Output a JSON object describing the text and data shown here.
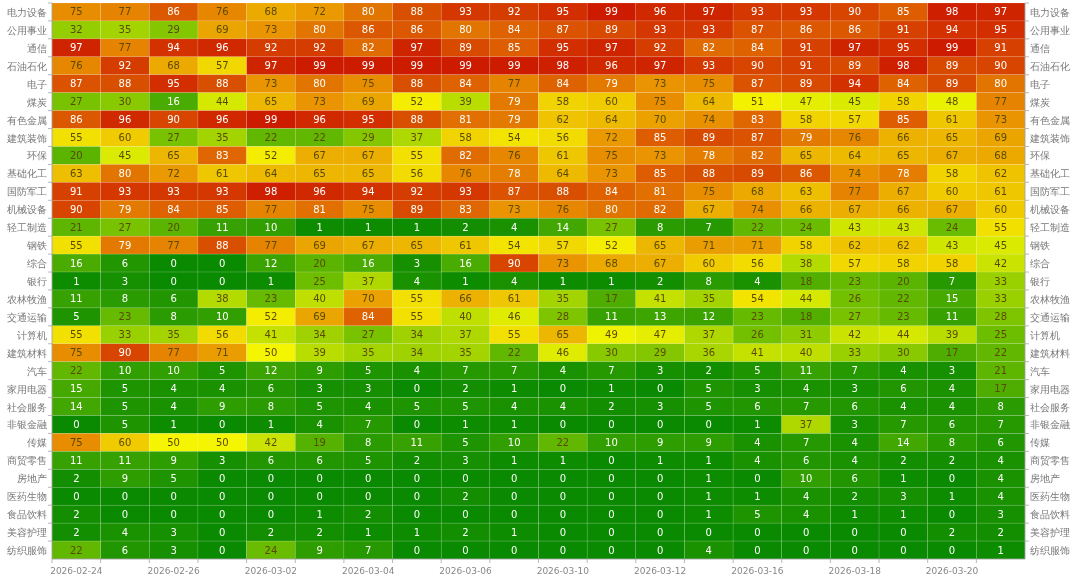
{
  "chart_data": {
    "type": "heatmap",
    "categories": [
      "2026-02-24",
      null,
      "2026-02-26",
      null,
      "2026-03-02",
      null,
      "2026-03-04",
      null,
      "2026-03-06",
      null,
      "2026-03-10",
      null,
      "2026-03-12",
      null,
      "2026-03-16",
      null,
      "2026-03-18",
      null,
      "2026-03-20",
      null
    ],
    "y_categories": [
      "电力设备",
      "公用事业",
      "通信",
      "石油石化",
      "电子",
      "煤炭",
      "有色金属",
      "建筑装饰",
      "环保",
      "基础化工",
      "国防军工",
      "机械设备",
      "轻工制造",
      "钢铁",
      "综合",
      "银行",
      "农林牧渔",
      "交通运输",
      "计算机",
      "建筑材料",
      "汽车",
      "家用电器",
      "社会服务",
      "非银金融",
      "传媒",
      "商贸零售",
      "房地产",
      "医药生物",
      "食品饮料",
      "美容护理",
      "纺织服饰"
    ],
    "y2_categories": [
      "电力设备",
      "公用事业",
      "通信",
      "石油石化",
      "电子",
      "煤炭",
      "有色金属",
      "建筑装饰",
      "环保",
      "基础化工",
      "国防军工",
      "机械设备",
      "轻工制造",
      "钢铁",
      "综合",
      "银行",
      "农林牧渔",
      "交通运输",
      "计算机",
      "建筑材料",
      "汽车",
      "家用电器",
      "社会服务",
      "非银金融",
      "传媒",
      "商贸零售",
      "房地产",
      "医药生物",
      "食品饮料",
      "美容护理",
      "纺织服饰"
    ],
    "cells": [
      [
        75,
        77,
        86,
        76,
        68,
        72,
        80,
        88,
        93,
        92,
        95,
        99,
        96,
        97,
        93,
        93,
        90,
        85,
        98,
        97
      ],
      [
        32,
        35,
        29,
        69,
        73,
        80,
        86,
        86,
        80,
        84,
        87,
        89,
        93,
        93,
        87,
        86,
        86,
        91,
        94,
        95
      ],
      [
        97,
        77,
        94,
        96,
        92,
        92,
        82,
        97,
        89,
        85,
        95,
        97,
        92,
        82,
        84,
        91,
        97,
        95,
        99,
        91
      ],
      [
        76,
        92,
        68,
        57,
        97,
        99,
        99,
        99,
        99,
        99,
        98,
        96,
        97,
        93,
        90,
        91,
        89,
        98,
        89,
        90
      ],
      [
        87,
        88,
        95,
        88,
        73,
        80,
        75,
        88,
        84,
        77,
        84,
        79,
        73,
        75,
        87,
        89,
        94,
        84,
        89,
        80
      ],
      [
        27,
        30,
        16,
        44,
        65,
        73,
        69,
        52,
        39,
        79,
        58,
        60,
        75,
        64,
        51,
        47,
        45,
        58,
        48,
        77
      ],
      [
        86,
        96,
        90,
        96,
        99,
        96,
        95,
        88,
        81,
        79,
        62,
        64,
        70,
        74,
        83,
        58,
        57,
        85,
        61,
        73
      ],
      [
        55,
        60,
        27,
        35,
        22,
        22,
        29,
        37,
        58,
        54,
        56,
        72,
        85,
        89,
        87,
        79,
        76,
        66,
        65,
        69
      ],
      [
        20,
        45,
        65,
        83,
        52,
        67,
        67,
        55,
        82,
        76,
        61,
        75,
        73,
        78,
        82,
        65,
        64,
        65,
        67,
        68
      ],
      [
        63,
        80,
        72,
        61,
        64,
        65,
        65,
        56,
        76,
        78,
        64,
        73,
        85,
        88,
        89,
        86,
        74,
        78,
        58,
        62
      ],
      [
        91,
        93,
        93,
        93,
        98,
        96,
        94,
        92,
        93,
        87,
        88,
        84,
        81,
        75,
        68,
        63,
        77,
        67,
        60,
        61
      ],
      [
        90,
        79,
        84,
        85,
        77,
        81,
        75,
        89,
        83,
        73,
        76,
        80,
        82,
        67,
        74,
        66,
        67,
        66,
        67,
        60
      ],
      [
        21,
        27,
        20,
        11,
        10,
        1,
        1,
        1,
        2,
        4,
        14,
        27,
        8,
        7,
        22,
        24,
        43,
        43,
        24,
        55
      ],
      [
        55,
        79,
        77,
        88,
        77,
        69,
        67,
        65,
        61,
        54,
        57,
        52,
        65,
        71,
        71,
        58,
        62,
        62,
        43,
        45
      ],
      [
        16,
        6,
        0,
        0,
        12,
        20,
        16,
        3,
        16,
        90,
        73,
        68,
        67,
        60,
        56,
        38,
        57,
        58,
        58,
        42
      ],
      [
        1,
        3,
        0,
        0,
        1,
        25,
        37,
        4,
        1,
        4,
        1,
        1,
        2,
        8,
        4,
        18,
        23,
        20,
        7,
        33
      ],
      [
        11,
        8,
        6,
        38,
        23,
        40,
        70,
        55,
        66,
        61,
        35,
        17,
        41,
        35,
        54,
        44,
        26,
        22,
        15,
        33
      ],
      [
        5,
        23,
        8,
        10,
        52,
        69,
        84,
        55,
        40,
        46,
        28,
        11,
        13,
        12,
        23,
        18,
        27,
        23,
        11,
        28
      ],
      [
        55,
        33,
        35,
        56,
        41,
        34,
        27,
        34,
        37,
        55,
        65,
        49,
        47,
        37,
        26,
        31,
        42,
        44,
        39,
        25
      ],
      [
        75,
        90,
        77,
        71,
        50,
        39,
        35,
        34,
        35,
        22,
        46,
        30,
        29,
        36,
        41,
        40,
        33,
        30,
        17,
        22
      ],
      [
        22,
        10,
        10,
        5,
        12,
        9,
        5,
        4,
        7,
        7,
        4,
        7,
        3,
        2,
        5,
        11,
        7,
        4,
        3,
        21
      ],
      [
        15,
        5,
        4,
        4,
        6,
        3,
        3,
        0,
        2,
        1,
        0,
        1,
        0,
        5,
        3,
        4,
        3,
        6,
        4,
        17
      ],
      [
        14,
        5,
        4,
        9,
        8,
        5,
        4,
        5,
        5,
        4,
        4,
        2,
        3,
        5,
        6,
        7,
        6,
        4,
        4,
        8
      ],
      [
        0,
        5,
        1,
        0,
        1,
        4,
        7,
        0,
        1,
        1,
        0,
        0,
        0,
        0,
        1,
        37,
        3,
        7,
        6,
        7
      ],
      [
        75,
        60,
        50,
        50,
        42,
        19,
        8,
        11,
        5,
        10,
        22,
        10,
        9,
        9,
        4,
        7,
        4,
        14,
        8,
        6
      ],
      [
        11,
        11,
        9,
        3,
        6,
        6,
        5,
        2,
        3,
        1,
        1,
        0,
        1,
        1,
        4,
        6,
        4,
        2,
        2,
        4
      ],
      [
        2,
        9,
        5,
        0,
        0,
        0,
        0,
        0,
        0,
        0,
        0,
        0,
        0,
        1,
        0,
        10,
        6,
        1,
        0,
        4
      ],
      [
        0,
        0,
        0,
        0,
        0,
        0,
        0,
        0,
        2,
        0,
        0,
        0,
        0,
        1,
        1,
        4,
        2,
        3,
        1,
        4
      ],
      [
        2,
        0,
        0,
        0,
        0,
        1,
        2,
        0,
        0,
        0,
        0,
        0,
        0,
        1,
        5,
        4,
        1,
        1,
        0,
        3
      ],
      [
        2,
        4,
        3,
        0,
        2,
        2,
        1,
        1,
        2,
        1,
        0,
        0,
        0,
        0,
        0,
        0,
        0,
        0,
        2,
        2
      ],
      [
        22,
        6,
        3,
        0,
        24,
        9,
        7,
        0,
        0,
        0,
        0,
        0,
        0,
        4,
        0,
        0,
        0,
        0,
        0,
        1
      ]
    ],
    "data_labels": true
  }
}
